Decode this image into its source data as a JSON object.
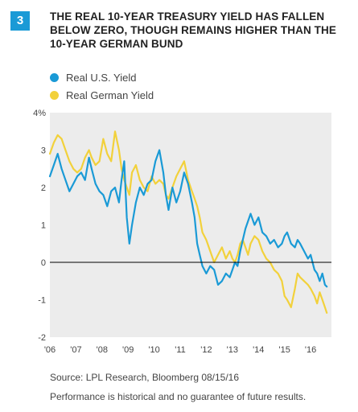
{
  "figure": {
    "number": "3",
    "title": "THE REAL 10-YEAR TREASURY YIELD HAS FALLEN BELOW ZERO, THOUGH REMAINS HIGHER THAN THE 10-YEAR GERMAN BUND",
    "source": "Source: LPL Research, Bloomberg   08/15/16",
    "note": "Performance is historical and no guarantee of future results."
  },
  "colors": {
    "accent": "#1a9ad6",
    "us": "#1a9ad6",
    "german": "#f2d13b",
    "plot_bg": "#ececec",
    "zero_line": "#000000"
  },
  "chart_data": {
    "type": "line",
    "xlabel": "",
    "ylabel": "",
    "ylim": [
      -2,
      4
    ],
    "xlim": [
      2006.0,
      2016.8
    ],
    "grid": false,
    "legend_position": "top-left",
    "x_ticks": [
      "'06",
      "'07",
      "'08",
      "'09",
      "'10",
      "'11",
      "'12",
      "'13",
      "'14",
      "'15",
      "'16"
    ],
    "y_ticks": [
      "4%",
      "3",
      "2",
      "1",
      "0",
      "-1",
      "-2"
    ],
    "series": [
      {
        "name": "Real U.S. Yield",
        "color": "#1a9ad6",
        "x": [
          2006.0,
          2006.15,
          2006.3,
          2006.45,
          2006.6,
          2006.75,
          2006.9,
          2007.05,
          2007.2,
          2007.35,
          2007.5,
          2007.6,
          2007.75,
          2007.9,
          2008.05,
          2008.2,
          2008.35,
          2008.5,
          2008.65,
          2008.75,
          2008.85,
          2008.95,
          2009.05,
          2009.15,
          2009.3,
          2009.45,
          2009.6,
          2009.75,
          2009.9,
          2010.05,
          2010.2,
          2010.35,
          2010.45,
          2010.55,
          2010.7,
          2010.85,
          2011.0,
          2011.15,
          2011.3,
          2011.45,
          2011.55,
          2011.65,
          2011.75,
          2011.85,
          2012.0,
          2012.15,
          2012.3,
          2012.45,
          2012.6,
          2012.75,
          2012.9,
          2013.0,
          2013.1,
          2013.2,
          2013.3,
          2013.4,
          2013.5,
          2013.6,
          2013.7,
          2013.85,
          2014.0,
          2014.15,
          2014.3,
          2014.45,
          2014.6,
          2014.75,
          2014.9,
          2015.0,
          2015.1,
          2015.25,
          2015.4,
          2015.5,
          2015.6,
          2015.75,
          2015.9,
          2016.0,
          2016.15,
          2016.25,
          2016.35,
          2016.45,
          2016.55,
          2016.62
        ],
        "values": [
          2.3,
          2.6,
          2.9,
          2.5,
          2.2,
          1.9,
          2.1,
          2.3,
          2.4,
          2.2,
          2.8,
          2.5,
          2.1,
          1.9,
          1.8,
          1.5,
          1.9,
          2.0,
          1.6,
          2.2,
          2.7,
          1.2,
          0.5,
          1.0,
          1.6,
          2.0,
          1.8,
          2.1,
          2.2,
          2.7,
          3.0,
          2.4,
          1.8,
          1.4,
          2.0,
          1.6,
          1.9,
          2.4,
          2.1,
          1.6,
          1.2,
          0.5,
          0.2,
          -0.1,
          -0.3,
          -0.1,
          -0.2,
          -0.6,
          -0.5,
          -0.3,
          -0.4,
          -0.2,
          0.0,
          -0.1,
          0.3,
          0.6,
          0.9,
          1.1,
          1.3,
          1.0,
          1.2,
          0.8,
          0.7,
          0.5,
          0.6,
          0.4,
          0.5,
          0.7,
          0.8,
          0.5,
          0.4,
          0.6,
          0.5,
          0.3,
          0.1,
          0.2,
          -0.2,
          -0.3,
          -0.5,
          -0.3,
          -0.6,
          -0.65
        ]
      },
      {
        "name": "Real German Yield",
        "color": "#f2d13b",
        "x": [
          2006.0,
          2006.15,
          2006.3,
          2006.45,
          2006.6,
          2006.75,
          2006.9,
          2007.05,
          2007.2,
          2007.35,
          2007.5,
          2007.6,
          2007.75,
          2007.9,
          2008.05,
          2008.2,
          2008.35,
          2008.5,
          2008.65,
          2008.75,
          2008.85,
          2008.95,
          2009.05,
          2009.15,
          2009.3,
          2009.45,
          2009.6,
          2009.75,
          2009.9,
          2010.05,
          2010.2,
          2010.35,
          2010.45,
          2010.55,
          2010.7,
          2010.85,
          2011.0,
          2011.15,
          2011.3,
          2011.45,
          2011.55,
          2011.65,
          2011.75,
          2011.85,
          2012.0,
          2012.15,
          2012.3,
          2012.45,
          2012.6,
          2012.75,
          2012.9,
          2013.0,
          2013.1,
          2013.2,
          2013.3,
          2013.4,
          2013.5,
          2013.6,
          2013.7,
          2013.85,
          2014.0,
          2014.15,
          2014.3,
          2014.45,
          2014.6,
          2014.75,
          2014.9,
          2015.0,
          2015.1,
          2015.25,
          2015.4,
          2015.5,
          2015.6,
          2015.75,
          2015.9,
          2016.0,
          2016.15,
          2016.25,
          2016.35,
          2016.45,
          2016.55,
          2016.62
        ],
        "values": [
          2.9,
          3.2,
          3.4,
          3.3,
          3.0,
          2.7,
          2.5,
          2.4,
          2.5,
          2.8,
          3.0,
          2.8,
          2.6,
          2.7,
          3.3,
          2.9,
          2.7,
          3.5,
          3.0,
          2.5,
          2.2,
          2.0,
          1.8,
          2.4,
          2.6,
          2.2,
          2.0,
          1.9,
          2.3,
          2.1,
          2.2,
          2.1,
          1.8,
          1.7,
          2.0,
          2.3,
          2.5,
          2.7,
          2.2,
          1.9,
          1.7,
          1.5,
          1.2,
          0.8,
          0.6,
          0.3,
          0.0,
          0.2,
          0.4,
          0.1,
          0.3,
          0.1,
          0.0,
          0.2,
          0.5,
          0.6,
          0.4,
          0.2,
          0.5,
          0.7,
          0.6,
          0.3,
          0.1,
          0.0,
          -0.2,
          -0.3,
          -0.5,
          -0.9,
          -1.0,
          -1.2,
          -0.7,
          -0.3,
          -0.4,
          -0.5,
          -0.6,
          -0.7,
          -0.9,
          -1.1,
          -0.8,
          -1.0,
          -1.2,
          -1.35
        ]
      }
    ]
  }
}
